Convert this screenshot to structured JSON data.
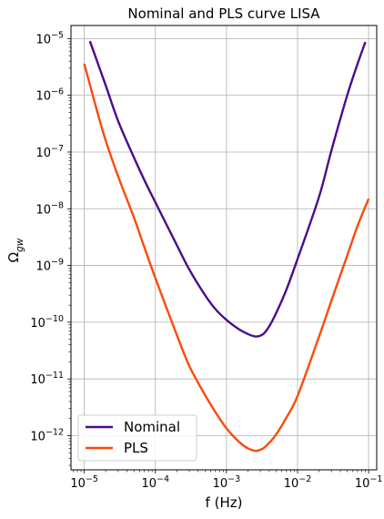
{
  "chart_data": {
    "type": "line",
    "title": "Nominal and PLS curve LISA",
    "xlabel": "f (Hz)",
    "ylabel": "Ω_gw",
    "xscale": "log",
    "yscale": "log",
    "xlim": [
      6.5e-06,
      0.13
    ],
    "ylim": [
      2.5e-13,
      1.7e-05
    ],
    "grid": true,
    "legend_position": "lower-left",
    "x_ticks": [
      {
        "base": "10",
        "exp": "−5",
        "value": 1e-05
      },
      {
        "base": "10",
        "exp": "−4",
        "value": 0.0001
      },
      {
        "base": "10",
        "exp": "−3",
        "value": 0.001
      },
      {
        "base": "10",
        "exp": "−2",
        "value": 0.01
      },
      {
        "base": "10",
        "exp": "−1",
        "value": 0.1
      }
    ],
    "y_ticks": [
      {
        "base": "10",
        "exp": "−12",
        "value": 1e-12
      },
      {
        "base": "10",
        "exp": "−11",
        "value": 1e-11
      },
      {
        "base": "10",
        "exp": "−10",
        "value": 1e-10
      },
      {
        "base": "10",
        "exp": "−9",
        "value": 1e-09
      },
      {
        "base": "10",
        "exp": "−8",
        "value": 1e-08
      },
      {
        "base": "10",
        "exp": "−7",
        "value": 1e-07
      },
      {
        "base": "10",
        "exp": "−6",
        "value": 1e-06
      },
      {
        "base": "10",
        "exp": "−5",
        "value": 1e-05
      }
    ],
    "series": [
      {
        "name": "Nominal",
        "color": "#4b0c8c",
        "points": [
          [
            1.2e-05,
            9e-06
          ],
          [
            2e-05,
            1.5e-06
          ],
          [
            3e-05,
            3.5e-07
          ],
          [
            5e-05,
            8e-08
          ],
          [
            7e-05,
            3.2e-08
          ],
          [
            0.0001,
            1.3e-08
          ],
          [
            0.0002,
            2.3e-09
          ],
          [
            0.0003,
            8.5e-10
          ],
          [
            0.0005,
            3e-10
          ],
          [
            0.0007,
            1.7e-10
          ],
          [
            0.001,
            1.1e-10
          ],
          [
            0.0015,
            7.5e-11
          ],
          [
            0.002,
            6.2e-11
          ],
          [
            0.0026,
            5.6e-11
          ],
          [
            0.0033,
            6.2e-11
          ],
          [
            0.004,
            8.5e-11
          ],
          [
            0.005,
            1.45e-10
          ],
          [
            0.007,
            3.8e-10
          ],
          [
            0.01,
            1.3e-09
          ],
          [
            0.02,
            1.6e-08
          ],
          [
            0.03,
            1.07e-07
          ],
          [
            0.05,
            1e-06
          ],
          [
            0.07,
            3.6e-06
          ],
          [
            0.09,
            8.7e-06
          ]
        ]
      },
      {
        "name": "PLS",
        "color": "#fb4a0a",
        "points": [
          [
            1e-05,
            3.6e-06
          ],
          [
            1.5e-05,
            5.5e-07
          ],
          [
            2e-05,
            1.6e-07
          ],
          [
            3e-05,
            3.7e-08
          ],
          [
            5e-05,
            7e-09
          ],
          [
            7e-05,
            2.1e-09
          ],
          [
            0.0001,
            6e-10
          ],
          [
            0.0002,
            6e-11
          ],
          [
            0.0003,
            1.7e-11
          ],
          [
            0.0005,
            5.2e-12
          ],
          [
            0.0007,
            2.6e-12
          ],
          [
            0.001,
            1.35e-12
          ],
          [
            0.0015,
            7.8e-13
          ],
          [
            0.002,
            6e-13
          ],
          [
            0.0026,
            5.4e-13
          ],
          [
            0.0033,
            6e-13
          ],
          [
            0.004,
            7.5e-13
          ],
          [
            0.005,
            1.05e-12
          ],
          [
            0.007,
            2.1e-12
          ],
          [
            0.01,
            5e-12
          ],
          [
            0.02,
            5.5e-11
          ],
          [
            0.03,
            2.4e-10
          ],
          [
            0.05,
            1.5e-09
          ],
          [
            0.07,
            5e-09
          ],
          [
            0.1,
            1.5e-08
          ]
        ]
      }
    ]
  }
}
